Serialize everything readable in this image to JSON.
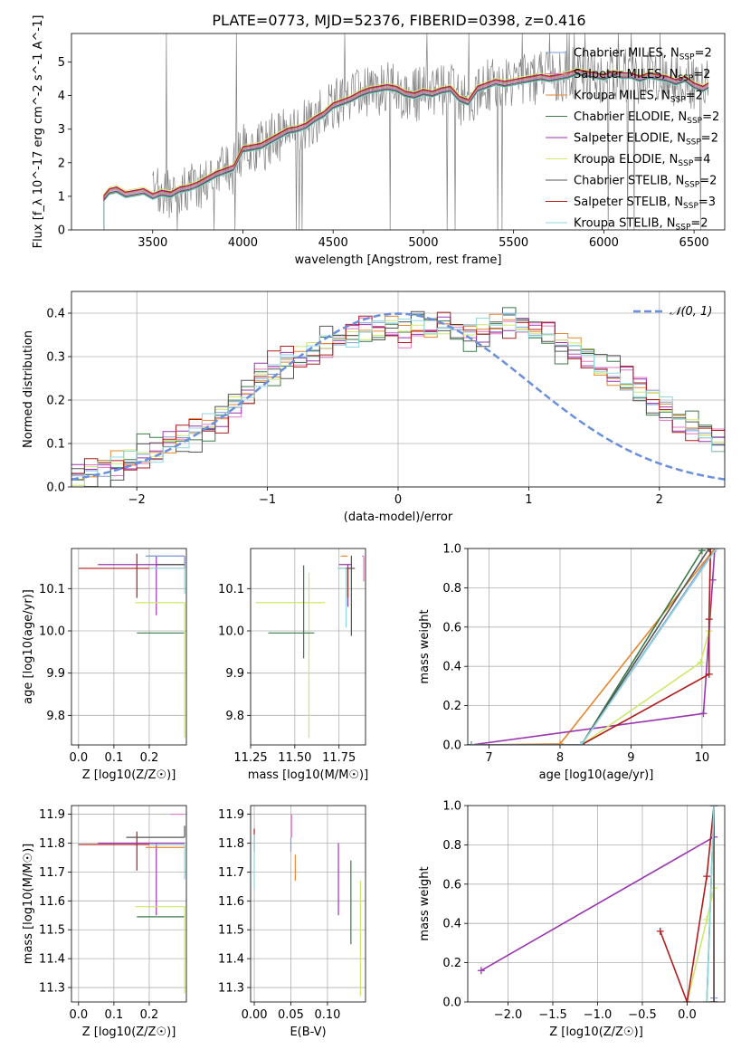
{
  "figure": {
    "title": "PLATE=0773, MJD=52376, FIBERID=0398, z=0.416",
    "colors": {
      "Chabrier MILES": "#7b9ed6",
      "Salpeter MILES": "#e378c0",
      "Kroupa MILES": "#e6862e",
      "Chabrier ELODIE": "#3c7a4a",
      "Salpeter ELODIE": "#9a35b0",
      "Kroupa ELODIE": "#cde86a",
      "Chabrier STELIB": "#555555",
      "Salpeter STELIB": "#b01c1c",
      "Kroupa STELIB": "#8ed8e0",
      "data": "#808080",
      "normal": "#6a8fdc"
    }
  },
  "chart_data": [
    {
      "id": "spectrum",
      "type": "line",
      "xlabel": "wavelength [Angstrom, rest frame]",
      "ylabel": "Flux [f_λ 10^-17 erg cm^-2 s^-1 A^-1]",
      "xlim": [
        3050,
        6670
      ],
      "ylim": [
        0,
        5.85
      ],
      "xticks": [
        3500,
        4000,
        4500,
        5000,
        5500,
        6000,
        6500
      ],
      "yticks": [
        0,
        1,
        2,
        3,
        4,
        5
      ],
      "grid": false,
      "legend_position": "upper-right",
      "legend": [
        {
          "label": "Chabrier MILES, N_SSP=2",
          "color": "#7b9ed6"
        },
        {
          "label": "Salpeter MILES, N_SSP=2",
          "color": "#e378c0"
        },
        {
          "label": "Kroupa MILES, N_SSP=2",
          "color": "#e6862e"
        },
        {
          "label": "Chabrier ELODIE, N_SSP=2",
          "color": "#3c7a4a"
        },
        {
          "label": "Salpeter ELODIE, N_SSP=2",
          "color": "#9a35b0"
        },
        {
          "label": "Kroupa ELODIE, N_SSP=4",
          "color": "#cde86a"
        },
        {
          "label": "Chabrier STELIB, N_SSP=2",
          "color": "#555555"
        },
        {
          "label": "Salpeter STELIB, N_SSP=3",
          "color": "#b01c1c"
        },
        {
          "label": "Kroupa STELIB, N_SSP=2",
          "color": "#8ed8e0"
        }
      ],
      "model_x": [
        3230,
        3260,
        3300,
        3350,
        3400,
        3450,
        3500,
        3550,
        3600,
        3650,
        3700,
        3750,
        3800,
        3850,
        3900,
        3950,
        4000,
        4050,
        4100,
        4150,
        4200,
        4250,
        4300,
        4350,
        4400,
        4450,
        4500,
        4550,
        4600,
        4650,
        4700,
        4750,
        4800,
        4850,
        4900,
        4950,
        5000,
        5050,
        5100,
        5150,
        5200,
        5250,
        5300,
        5350,
        5400,
        5450,
        5500,
        5550,
        5600,
        5650,
        5700,
        5750,
        5800,
        5850,
        5900,
        5950,
        6000,
        6050,
        6100,
        6150,
        6200,
        6250,
        6300,
        6350,
        6400,
        6450,
        6500,
        6550,
        6580
      ],
      "model_y": [
        0.95,
        1.15,
        1.2,
        1.05,
        1.1,
        1.15,
        1.0,
        1.1,
        1.05,
        1.2,
        1.25,
        1.35,
        1.5,
        1.65,
        1.75,
        1.85,
        2.4,
        2.45,
        2.5,
        2.65,
        2.8,
        2.95,
        3.0,
        3.1,
        3.3,
        3.45,
        3.7,
        3.8,
        3.9,
        4.05,
        4.15,
        4.2,
        4.25,
        4.2,
        4.05,
        4.0,
        4.1,
        4.05,
        4.15,
        4.2,
        3.9,
        3.8,
        4.2,
        4.3,
        4.4,
        4.35,
        4.4,
        4.45,
        4.5,
        4.55,
        4.5,
        4.55,
        4.6,
        4.7,
        4.65,
        4.6,
        4.55,
        4.65,
        4.6,
        4.6,
        4.5,
        4.6,
        4.55,
        4.5,
        4.4,
        4.5,
        4.3,
        4.2,
        4.3
      ],
      "model_offsets": [
        0,
        -0.03,
        0.03,
        -0.08,
        0.06,
        0.12,
        -0.05,
        0.08,
        -0.1
      ],
      "data_x_range": [
        3500,
        6580
      ]
    },
    {
      "id": "residuals",
      "type": "step",
      "xlabel": "(data-model)/error",
      "ylabel": "Normed distribution",
      "xlim": [
        -2.5,
        2.5
      ],
      "ylim": [
        0,
        0.45
      ],
      "xticks": [
        -2,
        -1,
        0,
        1,
        2
      ],
      "yticks": [
        0.0,
        0.1,
        0.2,
        0.3,
        0.4
      ],
      "grid": true,
      "legend_position": "upper-right",
      "legend": [
        {
          "label": "𝒩(0, 1)",
          "color": "#6a8fdc",
          "style": "dashed"
        }
      ],
      "bin_edges_start": -2.5,
      "bin_width": 0.1,
      "base_hist": [
        0.03,
        0.035,
        0.04,
        0.055,
        0.06,
        0.075,
        0.08,
        0.1,
        0.11,
        0.13,
        0.14,
        0.16,
        0.19,
        0.21,
        0.25,
        0.27,
        0.29,
        0.3,
        0.31,
        0.33,
        0.34,
        0.35,
        0.36,
        0.36,
        0.37,
        0.36,
        0.38,
        0.37,
        0.37,
        0.36,
        0.35,
        0.36,
        0.37,
        0.38,
        0.37,
        0.36,
        0.35,
        0.33,
        0.32,
        0.3,
        0.28,
        0.26,
        0.24,
        0.22,
        0.2,
        0.18,
        0.16,
        0.14,
        0.12,
        0.1,
        0.08
      ],
      "series_offsets": [
        0,
        0.02,
        -0.015,
        0.03,
        -0.025,
        0.01,
        -0.03,
        0.025,
        -0.01
      ]
    },
    {
      "id": "age_vs_Z",
      "type": "errorbar",
      "xlabel": "Z [log10(Z/Z☉)]",
      "ylabel": "age [log10(age/yr)]",
      "xlim": [
        -0.02,
        0.305
      ],
      "ylim": [
        9.73,
        10.195
      ],
      "xticks": [
        0.0,
        0.1,
        0.2
      ],
      "yticks": [
        9.8,
        9.9,
        10.0,
        10.1
      ],
      "grid": true,
      "points": [
        {
          "series": "Salpeter STELIB",
          "x": 0.165,
          "xerr": [
            0.165,
            0.135
          ],
          "y": 10.148,
          "yerr": [
            0.07,
            0.035
          ]
        },
        {
          "series": "Salpeter ELODIE",
          "x": 0.22,
          "xerr": [
            0.165,
            0.08
          ],
          "y": 10.157,
          "yerr": [
            0.12,
            0.02
          ]
        },
        {
          "series": "Salpeter MILES",
          "x": 0.3,
          "xerr": [
            0.1,
            0.0
          ],
          "y": 10.177,
          "yerr": [
            0.02,
            0.0
          ]
        },
        {
          "series": "Chabrier ELODIE",
          "x": 0.3,
          "xerr": [
            0.135,
            0.0
          ],
          "y": 9.995,
          "yerr": [
            0.0,
            0.0
          ]
        },
        {
          "series": "Kroupa ELODIE",
          "x": 0.3,
          "xerr": [
            0.14,
            0.0
          ],
          "y": 10.067,
          "yerr": [
            0.32,
            0.0
          ]
        },
        {
          "series": "Chabrier MILES",
          "x": 0.3,
          "xerr": [
            0.11,
            0.0
          ],
          "y": 10.177,
          "yerr": [
            0.03,
            0.0
          ]
        },
        {
          "series": "Kroupa STELIB",
          "x": 0.3,
          "xerr": [
            0.1,
            0.0
          ],
          "y": 10.148,
          "yerr": [
            0.06,
            0.0
          ]
        },
        {
          "series": "Chabrier STELIB",
          "x": 0.3,
          "xerr": [
            0.08,
            0.0
          ],
          "y": 10.157,
          "yerr": [
            0.0,
            0.0
          ]
        }
      ]
    },
    {
      "id": "age_vs_mass",
      "type": "errorbar",
      "xlabel": "mass [log10(M/M☉)]",
      "ylabel": "",
      "xlim": [
        11.25,
        11.9
      ],
      "ylim": [
        9.73,
        10.195
      ],
      "xticks": [
        11.25,
        11.5,
        11.75
      ],
      "yticks": [
        9.8,
        9.9,
        10.0,
        10.1
      ],
      "grid": true,
      "points": [
        {
          "series": "Kroupa ELODIE",
          "x": 11.58,
          "xerr": [
            0.3,
            0.09
          ],
          "y": 10.067,
          "yerr": [
            0.32,
            0.07
          ]
        },
        {
          "series": "Chabrier ELODIE",
          "x": 11.55,
          "xerr": [
            0.2,
            0.06
          ],
          "y": 9.995,
          "yerr": [
            0.06,
            0.16
          ]
        },
        {
          "series": "Salpeter ELODIE",
          "x": 11.8,
          "xerr": [
            0.05,
            0.02
          ],
          "y": 10.157,
          "yerr": [
            0.1,
            0.0
          ]
        },
        {
          "series": "Salpeter STELIB",
          "x": 11.8,
          "xerr": [
            0.05,
            0.02
          ],
          "y": 10.148,
          "yerr": [
            0.07,
            0.0
          ]
        },
        {
          "series": "Chabrier STELIB",
          "x": 11.82,
          "xerr": [
            0.03,
            0.02
          ],
          "y": 10.148,
          "yerr": [
            0.16,
            0.03
          ]
        },
        {
          "series": "Kroupa STELIB",
          "x": 11.79,
          "xerr": [
            0.05,
            0.0
          ],
          "y": 10.148,
          "yerr": [
            0.14,
            0.0
          ]
        },
        {
          "series": "Salpeter MILES",
          "x": 11.89,
          "xerr": [
            0.01,
            0.0
          ],
          "y": 10.177,
          "yerr": [
            0.06,
            0.0
          ]
        },
        {
          "series": "Kroupa MILES",
          "x": 11.8,
          "xerr": [
            0.04,
            0.0
          ],
          "y": 10.177,
          "yerr": [
            0.0,
            0.0
          ]
        }
      ]
    },
    {
      "id": "weight_vs_age",
      "type": "line",
      "xlabel": "age [log10(age/yr)]",
      "ylabel": "mass weight",
      "xlim": [
        6.7,
        10.32
      ],
      "ylim": [
        0,
        1.0
      ],
      "xticks": [
        7,
        8,
        9,
        10
      ],
      "yticks": [
        0.0,
        0.2,
        0.4,
        0.6,
        0.8,
        1.0
      ],
      "grid": true,
      "series": [
        {
          "name": "Chabrier MILES",
          "x": [
            6.75,
            8.3,
            10.18
          ],
          "y": [
            0,
            0,
            1.0
          ]
        },
        {
          "name": "Salpeter MILES",
          "x": [
            6.75,
            8.3,
            10.2
          ],
          "y": [
            0,
            0,
            1.0
          ]
        },
        {
          "name": "Kroupa MILES",
          "x": [
            6.75,
            8.0,
            10.18
          ],
          "y": [
            0,
            0.005,
            1.0
          ]
        },
        {
          "name": "Chabrier ELODIE",
          "x": [
            6.75,
            8.3,
            10.0
          ],
          "y": [
            0,
            0,
            0.99
          ]
        },
        {
          "name": "Salpeter ELODIE",
          "x": [
            6.75,
            10.02,
            10.15,
            10.18
          ],
          "y": [
            0,
            0.16,
            0.84,
            1.0
          ]
        },
        {
          "name": "Kroupa ELODIE",
          "x": [
            6.75,
            8.3,
            9.98,
            10.1,
            10.12
          ],
          "y": [
            0,
            0,
            0.42,
            0.58,
            1.0
          ]
        },
        {
          "name": "Chabrier STELIB",
          "x": [
            6.75,
            8.3,
            10.1
          ],
          "y": [
            0,
            0,
            1.0
          ]
        },
        {
          "name": "Salpeter STELIB",
          "x": [
            6.75,
            8.3,
            10.1,
            10.1,
            10.12
          ],
          "y": [
            0,
            0,
            0.36,
            0.64,
            1.0
          ]
        },
        {
          "name": "Kroupa STELIB",
          "x": [
            6.75,
            8.3,
            10.2
          ],
          "y": [
            0,
            0,
            1.0
          ]
        }
      ]
    },
    {
      "id": "mass_vs_Z",
      "type": "errorbar",
      "xlabel": "Z [log10(Z/Z☉)]",
      "ylabel": "mass [log10(M/M☉)]",
      "xlim": [
        -0.02,
        0.305
      ],
      "ylim": [
        11.25,
        11.93
      ],
      "xticks": [
        0.0,
        0.1,
        0.2
      ],
      "yticks": [
        11.3,
        11.4,
        11.5,
        11.6,
        11.7,
        11.8,
        11.9
      ],
      "grid": true,
      "points": [
        {
          "series": "Salpeter STELIB",
          "x": 0.165,
          "xerr": [
            0.165,
            0.135
          ],
          "y": 11.795,
          "yerr": [
            0.09,
            0.045
          ]
        },
        {
          "series": "Salpeter ELODIE",
          "x": 0.22,
          "xerr": [
            0.165,
            0.08
          ],
          "y": 11.8,
          "yerr": [
            0.25,
            0.0
          ]
        },
        {
          "series": "Chabrier STELIB",
          "x": 0.3,
          "xerr": [
            0.165,
            0.0
          ],
          "y": 11.82,
          "yerr": [
            0.0,
            0.04
          ]
        },
        {
          "series": "Chabrier ELODIE",
          "x": 0.3,
          "xerr": [
            0.135,
            0.0
          ],
          "y": 11.545,
          "yerr": [
            0.0,
            0.0
          ]
        },
        {
          "series": "Kroupa ELODIE",
          "x": 0.3,
          "xerr": [
            0.14,
            0.0
          ],
          "y": 11.58,
          "yerr": [
            0.3,
            0.0
          ]
        },
        {
          "series": "Salpeter MILES",
          "x": 0.3,
          "xerr": [
            0.04,
            0.0
          ],
          "y": 11.9,
          "yerr": [
            0.0,
            0.0
          ]
        },
        {
          "series": "Kroupa MILES",
          "x": 0.3,
          "xerr": [
            0.11,
            0.0
          ],
          "y": 11.785,
          "yerr": [
            0.0,
            0.0
          ]
        },
        {
          "series": "Kroupa STELIB",
          "x": 0.3,
          "xerr": [
            0.1,
            0.0
          ],
          "y": 11.795,
          "yerr": [
            0.12,
            0.0
          ]
        }
      ]
    },
    {
      "id": "mass_vs_EBV",
      "type": "errorbar",
      "xlabel": "E(B-V)",
      "ylabel": "",
      "xlim": [
        -0.005,
        0.152
      ],
      "ylim": [
        11.25,
        11.93
      ],
      "xticks": [
        0.0,
        0.05,
        0.1
      ],
      "yticks": [
        11.3,
        11.4,
        11.5,
        11.6,
        11.7,
        11.8,
        11.9
      ],
      "grid": true,
      "points": [
        {
          "series": "Salpeter STELIB",
          "x": 0.0,
          "y": 11.8,
          "yerr": [
            0.03,
            0.05
          ]
        },
        {
          "series": "Kroupa STELIB",
          "x": 0.0,
          "y": 11.74,
          "yerr": [
            0.1,
            0.09
          ]
        },
        {
          "series": "Chabrier MILES",
          "x": 0.05,
          "y": 11.8,
          "yerr": [
            0.03,
            0.02
          ]
        },
        {
          "series": "Salpeter MILES",
          "x": 0.051,
          "y": 11.85,
          "yerr": [
            0.03,
            0.05
          ]
        },
        {
          "series": "Kroupa MILES",
          "x": 0.056,
          "y": 11.7,
          "yerr": [
            0.03,
            0.06
          ]
        },
        {
          "series": "Salpeter ELODIE",
          "x": 0.115,
          "y": 11.68,
          "yerr": [
            0.13,
            0.12
          ]
        },
        {
          "series": "Chabrier ELODIE",
          "x": 0.132,
          "y": 11.6,
          "yerr": [
            0.15,
            0.14
          ]
        },
        {
          "series": "Kroupa ELODIE",
          "x": 0.145,
          "y": 11.47,
          "yerr": [
            0.2,
            0.2
          ]
        }
      ]
    },
    {
      "id": "weight_vs_Z",
      "type": "line",
      "xlabel": "Z [log10(Z/Z☉)]",
      "ylabel": "mass weight",
      "xlim": [
        -2.45,
        0.42
      ],
      "ylim": [
        0,
        1.0
      ],
      "xticks": [
        -2.0,
        -1.5,
        -1.0,
        -0.5,
        0.0
      ],
      "yticks": [
        0.0,
        0.2,
        0.4,
        0.6,
        0.8,
        1.0
      ],
      "grid": true,
      "series": [
        {
          "name": "Chabrier MILES",
          "x": [
            0.3,
            0.3,
            0.3
          ],
          "y": [
            0,
            0.02,
            1.0
          ]
        },
        {
          "name": "Salpeter MILES",
          "x": [
            0.3,
            0.3
          ],
          "y": [
            0,
            1.0
          ]
        },
        {
          "name": "Kroupa MILES",
          "x": [
            0.3,
            0.3
          ],
          "y": [
            0,
            1.0
          ]
        },
        {
          "name": "Chabrier ELODIE",
          "x": [
            0.22,
            0.3
          ],
          "y": [
            0,
            1.0
          ]
        },
        {
          "name": "Salpeter ELODIE",
          "x": [
            -2.3,
            0.3,
            0.3
          ],
          "y": [
            0.16,
            0.84,
            1.0
          ]
        },
        {
          "name": "Kroupa ELODIE",
          "x": [
            0.0,
            0.22,
            0.3,
            0.3
          ],
          "y": [
            0,
            0.42,
            0.58,
            1.0
          ]
        },
        {
          "name": "Chabrier STELIB",
          "x": [
            0.3,
            0.3
          ],
          "y": [
            0,
            1.0
          ]
        },
        {
          "name": "Salpeter STELIB",
          "x": [
            -0.3,
            0.0,
            0.22,
            0.3
          ],
          "y": [
            0.36,
            0.0,
            0.64,
            1.0
          ]
        },
        {
          "name": "Kroupa STELIB",
          "x": [
            0.22,
            0.3
          ],
          "y": [
            0,
            1.0
          ]
        }
      ]
    }
  ]
}
